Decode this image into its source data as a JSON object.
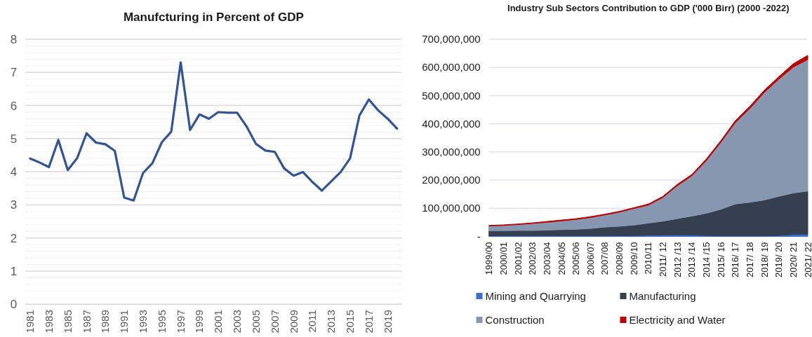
{
  "chart_data": [
    {
      "type": "line",
      "title": "Manufcturing in Percent of GDP",
      "x": [
        1981,
        1982,
        1983,
        1984,
        1985,
        1986,
        1987,
        1988,
        1989,
        1990,
        1991,
        1992,
        1993,
        1994,
        1995,
        1996,
        1997,
        1998,
        1999,
        2000,
        2001,
        2002,
        2003,
        2004,
        2005,
        2006,
        2007,
        2008,
        2009,
        2010,
        2011,
        2012,
        2013,
        2014,
        2015,
        2016,
        2017,
        2018,
        2019,
        2020
      ],
      "series": [
        {
          "color": "#2f5597",
          "values": [
            4.4,
            4.28,
            4.14,
            4.96,
            4.05,
            4.41,
            5.16,
            4.88,
            4.83,
            4.63,
            3.22,
            3.13,
            3.96,
            4.26,
            4.89,
            5.21,
            7.3,
            5.26,
            5.73,
            5.6,
            5.8,
            5.78,
            5.78,
            5.37,
            4.84,
            4.64,
            4.6,
            4.1,
            3.88,
            3.99,
            3.69,
            3.43,
            3.71,
            3.99,
            4.4,
            5.7,
            6.18,
            5.85,
            5.6,
            5.3
          ]
        }
      ],
      "xlim": [
        1980.5,
        2020.5
      ],
      "xticks": [
        1981,
        1983,
        1985,
        1987,
        1989,
        1991,
        1993,
        1995,
        1997,
        1999,
        2001,
        2003,
        2005,
        2007,
        2009,
        2011,
        2013,
        2015,
        2017,
        2019
      ],
      "ylim": [
        0,
        8
      ],
      "yticks": [
        0,
        {
          "value": 0.2,
          "label": null
        },
        {
          "value": 0.4,
          "label": null
        },
        {
          "value": 0.6,
          "label": null
        },
        {
          "value": 0.8,
          "label": null
        },
        1,
        {
          "value": 1.2,
          "label": null
        },
        {
          "value": 1.4,
          "label": null
        },
        {
          "value": 1.6,
          "label": null
        },
        {
          "value": 1.8,
          "label": null
        },
        2,
        {
          "value": 2.2,
          "label": null
        },
        {
          "value": 2.4,
          "label": null
        },
        {
          "value": 2.6,
          "label": null
        },
        {
          "value": 2.8,
          "label": null
        },
        3,
        {
          "value": 3.2,
          "label": null
        },
        {
          "value": 3.4,
          "label": null
        },
        {
          "value": 3.6,
          "label": null
        },
        {
          "value": 3.8,
          "label": null
        },
        4,
        {
          "value": 4.2,
          "label": null
        },
        {
          "value": 4.4,
          "label": null
        },
        {
          "value": 4.6,
          "label": null
        },
        {
          "value": 4.8,
          "label": null
        },
        5,
        {
          "value": 5.2,
          "label": null
        },
        {
          "value": 5.4,
          "label": null
        },
        {
          "value": 5.6,
          "label": null
        },
        {
          "value": 5.8,
          "label": null
        },
        6,
        {
          "value": 6.2,
          "label": null
        },
        {
          "value": 6.4,
          "label": null
        },
        {
          "value": 6.6,
          "label": null
        },
        {
          "value": 6.8,
          "label": null
        },
        7,
        {
          "value": 7.2,
          "label": null
        },
        {
          "value": 7.4,
          "label": null
        },
        {
          "value": 7.6,
          "label": null
        },
        {
          "value": 7.8,
          "label": null
        },
        8
      ],
      "grid": "y",
      "legend": false,
      "marker": "none",
      "line_style": "solid"
    },
    {
      "type": "area",
      "stacked": true,
      "title": "Industry Sub Sectors Contribution to GDP ('000 Birr) (2000 -2022)",
      "categories": [
        "1999/00",
        "2000/01",
        "2001/02",
        "2002/03",
        "2003/04",
        "2004/05",
        "2005/06",
        "2006/07",
        "2007/08",
        "2008/09",
        "2009/10",
        "2010/11",
        "2011/ 12",
        "2012 /13",
        "2013 /14",
        "2014 /15",
        "2015/ 16",
        "2016/ 17",
        "2017/ 18",
        "2018/ 19",
        "2019/ 20",
        "2020/ 21",
        "2021/ 22"
      ],
      "series": [
        {
          "name": "Mining and Quarrying",
          "color": "#3a6fd0",
          "values": [
            2000000,
            2000000,
            2000000,
            2000000,
            2000000,
            2000000,
            2000000,
            2000000,
            2000000,
            2000000,
            3000000,
            4000000,
            5000000,
            5000000,
            5000000,
            3000000,
            2000000,
            2000000,
            2000000,
            2000000,
            3000000,
            7000000,
            8000000
          ]
        },
        {
          "name": "Manufacturing",
          "color": "#353f50",
          "values": [
            18000000,
            18000000,
            19000000,
            19000000,
            20000000,
            22000000,
            23000000,
            26000000,
            31000000,
            34000000,
            37000000,
            43000000,
            49000000,
            58000000,
            67000000,
            79000000,
            94000000,
            113000000,
            119000000,
            127000000,
            139000000,
            147000000,
            153000000
          ]
        },
        {
          "name": "Construction",
          "color": "#8797b0",
          "values": [
            17000000,
            19000000,
            21000000,
            25000000,
            28000000,
            31000000,
            35000000,
            39000000,
            43000000,
            50000000,
            59000000,
            64000000,
            84000000,
            117000000,
            143000000,
            187000000,
            238000000,
            289000000,
            333000000,
            382000000,
            416000000,
            447000000,
            467000000
          ]
        },
        {
          "name": "Electricity and Water",
          "color": "#c00000",
          "values": [
            2000000,
            2000000,
            2000000,
            2000000,
            3000000,
            3000000,
            3000000,
            3000000,
            3000000,
            3000000,
            3000000,
            4000000,
            4000000,
            5000000,
            5000000,
            6000000,
            6000000,
            7000000,
            8000000,
            8000000,
            9000000,
            12000000,
            15000000
          ]
        }
      ],
      "ylim": [
        0,
        700000000
      ],
      "yticks": [
        {
          "value": 0,
          "label": "-"
        },
        {
          "value": 100000000,
          "label": "100,000,000"
        },
        {
          "value": 200000000,
          "label": "200,000,000"
        },
        {
          "value": 300000000,
          "label": "300,000,000"
        },
        {
          "value": 400000000,
          "label": "400,000,000"
        },
        {
          "value": 500000000,
          "label": "500,000,000"
        },
        {
          "value": 600000000,
          "label": "600,000,000"
        },
        {
          "value": 700000000,
          "label": "700,000,000"
        }
      ],
      "grid": "y",
      "legend": "bottom"
    }
  ]
}
